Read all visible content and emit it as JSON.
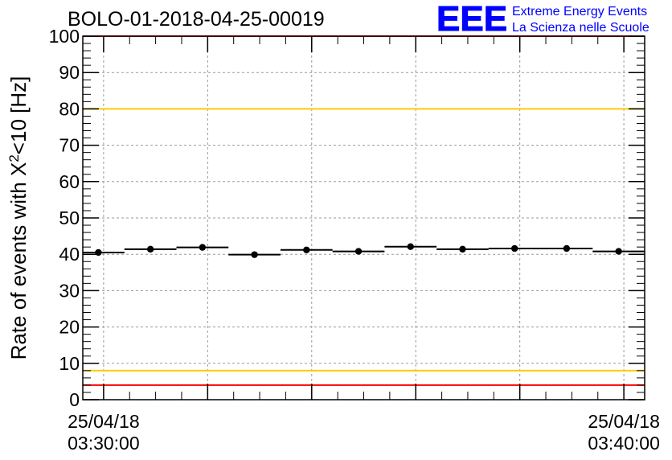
{
  "title": "BOLO-01-2018-04-25-00019",
  "logo": {
    "mark": "EEE",
    "line1": "Extreme Energy Events",
    "line2": "La Scienza nelle Scuole",
    "color": "#0000ff"
  },
  "chart_data": {
    "type": "scatter",
    "title": "BOLO-01-2018-04-25-00019",
    "xlabel": "",
    "ylabel_main": "Rate of events with X",
    "ylabel_sup": "2",
    "ylabel_rest": "<10 [Hz]",
    "ylim": [
      0,
      100
    ],
    "yticks": [
      0,
      10,
      20,
      30,
      40,
      50,
      60,
      70,
      80,
      90,
      100
    ],
    "x_unit": "minutes after 25/04/18 03:30:00",
    "xlim": [
      -0.4,
      10.4
    ],
    "xtick_labels": [
      {
        "x": 0,
        "date": "25/04/18",
        "time": "03:30:00"
      },
      {
        "x": 10,
        "date": "25/04/18",
        "time": "03:40:00"
      }
    ],
    "x_gridlines": [
      0,
      2,
      4,
      6,
      8,
      10
    ],
    "bin_width": 1,
    "points": [
      {
        "x": -0.1,
        "y": 40.5
      },
      {
        "x": 0.9,
        "y": 41.4
      },
      {
        "x": 1.9,
        "y": 41.9
      },
      {
        "x": 2.9,
        "y": 39.9
      },
      {
        "x": 3.9,
        "y": 41.2
      },
      {
        "x": 4.9,
        "y": 40.8
      },
      {
        "x": 5.9,
        "y": 42.1
      },
      {
        "x": 6.9,
        "y": 41.4
      },
      {
        "x": 7.9,
        "y": 41.6
      },
      {
        "x": 8.9,
        "y": 41.6
      },
      {
        "x": 9.9,
        "y": 40.8
      }
    ],
    "reference_lines": [
      {
        "y": 100,
        "color": "#ff0000"
      },
      {
        "y": 80,
        "color": "#ffcc00"
      },
      {
        "y": 8,
        "color": "#ffcc00"
      },
      {
        "y": 4,
        "color": "#ff0000"
      }
    ],
    "grid": true,
    "marker_color": "#000000"
  }
}
